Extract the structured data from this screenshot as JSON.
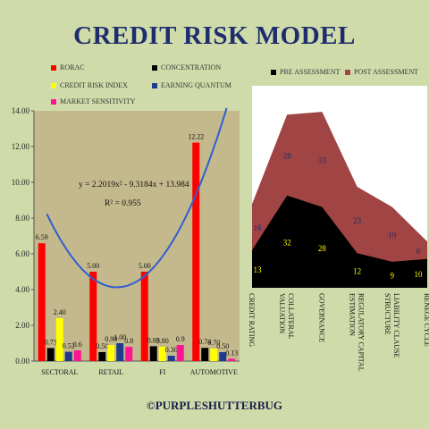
{
  "title": "CREDIT RISK MODEL",
  "footer": "©PURPLESHUTTERBUG",
  "colors": {
    "background": "#cfdcaa",
    "plot_bg": "#c4b98c",
    "title": "#1f2d6e",
    "rorac": "#ff0000",
    "concentration": "#000000",
    "credit_risk_index": "#ffff00",
    "earning_quantum": "#1f3b8c",
    "market_sensitivity": "#ff1493",
    "trendline": "#2f5fd0",
    "pre_assessment": "#000000",
    "post_assessment": "#a04444",
    "area_plot_bg": "#ffffff"
  },
  "chart_data": [
    {
      "type": "bar",
      "categories": [
        "SECTORAL",
        "RETAIL",
        "FI",
        "AUTOMOTIVE"
      ],
      "series": [
        {
          "name": "RORAC",
          "values": [
            6.59,
            5.0,
            5.0,
            12.22
          ],
          "labels": [
            "6.59",
            "5.00",
            "5.00",
            "12.22"
          ],
          "color_key": "rorac"
        },
        {
          "name": "CONCENTRATION",
          "values": [
            0.73,
            0.5,
            0.83,
            0.74
          ],
          "labels": [
            "0.73",
            "0.50",
            "0.83",
            "0.74"
          ],
          "color_key": "concentration"
        },
        {
          "name": "CREDIT RISK INDEX",
          "values": [
            2.4,
            0.9,
            0.8,
            0.7
          ],
          "labels": [
            "2.40",
            "0.90",
            "0.80",
            "0.70"
          ],
          "color_key": "credit_risk_index"
        },
        {
          "name": "EARNING QUANTUM",
          "values": [
            0.52,
            1.0,
            0.3,
            0.5
          ],
          "labels": [
            "0.52",
            "1.00",
            "0.30",
            "0.50"
          ],
          "color_key": "earning_quantum"
        },
        {
          "name": "MARKET SENSITIVITY",
          "values": [
            0.6,
            0.8,
            0.9,
            0.13
          ],
          "labels": [
            "0.6",
            "0.8",
            "0.9",
            "0.13"
          ],
          "color_key": "market_sensitivity"
        }
      ],
      "ylim": [
        0,
        14
      ],
      "yticks": [
        "0.00",
        "2.00",
        "4.00",
        "6.00",
        "8.00",
        "10.00",
        "12.00",
        "14.00"
      ],
      "trendline": {
        "equation": "y = 2.2019x² - 9.3184x + 13.984",
        "r_squared": "R² = 0.955",
        "coefficients": [
          2.2019,
          -9.3184,
          13.984
        ]
      },
      "legend_position": "top"
    },
    {
      "type": "area",
      "categories": [
        "CREDIT RATING",
        "COLLATERAL VALUATION",
        "GOVERNANCE",
        "REGULATORY CAPITAL ESTIMATION",
        "LIABILITY CLAUSE STRUCTURE",
        "RENEGE CYCLE"
      ],
      "series": [
        {
          "name": "PRE ASSESSMENT",
          "values": [
            13,
            32,
            28,
            12,
            9,
            10
          ],
          "color_key": "pre_assessment"
        },
        {
          "name": "POST ASSESSMENT",
          "values": [
            16,
            28,
            33,
            23,
            19,
            6
          ],
          "color_key": "post_assessment"
        }
      ],
      "stacked": true,
      "legend_position": "top"
    }
  ]
}
